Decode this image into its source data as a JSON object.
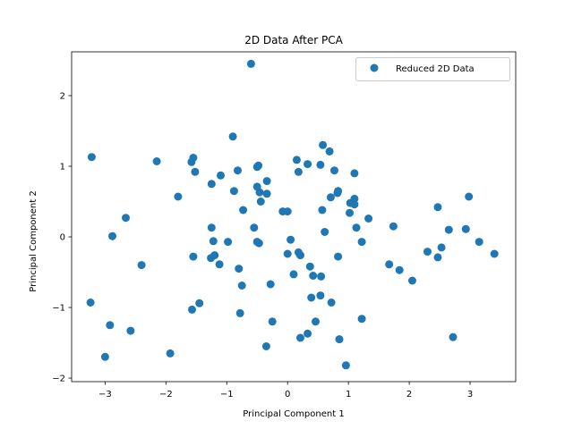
{
  "chart_data": {
    "type": "scatter",
    "title": "2D Data After PCA",
    "xlabel": "Principal Component 1",
    "ylabel": "Principal Component 2",
    "xlim": [
      -3.55,
      3.75
    ],
    "ylim": [
      -2.05,
      2.62
    ],
    "xticks": [
      -3,
      -2,
      -1,
      0,
      1,
      2,
      3
    ],
    "yticks": [
      -2,
      -1,
      0,
      1,
      2
    ],
    "grid": false,
    "legend": {
      "placement": "top-right"
    },
    "color": "#1f77b4",
    "series": [
      {
        "name": "Reduced 2D Data",
        "points": [
          [
            -0.6,
            2.45
          ],
          [
            -3.22,
            1.13
          ],
          [
            -2.15,
            1.07
          ],
          [
            -1.58,
            1.06
          ],
          [
            -1.55,
            1.12
          ],
          [
            -0.9,
            1.42
          ],
          [
            -0.82,
            0.94
          ],
          [
            -0.5,
            0.99
          ],
          [
            -0.48,
            1.01
          ],
          [
            -0.88,
            0.65
          ],
          [
            -0.5,
            0.71
          ],
          [
            -0.34,
            0.79
          ],
          [
            -0.46,
            0.63
          ],
          [
            -0.34,
            0.61
          ],
          [
            -0.44,
            0.5
          ],
          [
            -1.52,
            0.92
          ],
          [
            -1.1,
            0.87
          ],
          [
            -1.25,
            0.75
          ],
          [
            -1.8,
            0.57
          ],
          [
            -0.73,
            0.38
          ],
          [
            -0.08,
            0.36
          ],
          [
            0.0,
            0.36
          ],
          [
            -0.55,
            0.13
          ],
          [
            -1.25,
            0.13
          ],
          [
            -2.66,
            0.27
          ],
          [
            -2.88,
            0.01
          ],
          [
            -2.4,
            -0.4
          ],
          [
            -0.98,
            -0.07
          ],
          [
            -0.5,
            -0.07
          ],
          [
            -0.47,
            -0.09
          ],
          [
            -1.22,
            -0.06
          ],
          [
            -1.55,
            -0.28
          ],
          [
            -1.26,
            -0.3
          ],
          [
            -1.2,
            -0.26
          ],
          [
            -1.12,
            -0.39
          ],
          [
            -0.8,
            -0.45
          ],
          [
            -0.75,
            -0.69
          ],
          [
            -0.28,
            -0.67
          ],
          [
            0.0,
            -0.24
          ],
          [
            0.05,
            -0.04
          ],
          [
            0.18,
            -0.22
          ],
          [
            0.21,
            -0.26
          ],
          [
            0.1,
            -0.53
          ],
          [
            0.37,
            -0.42
          ],
          [
            0.42,
            -0.55
          ],
          [
            0.55,
            -0.56
          ],
          [
            0.39,
            -0.86
          ],
          [
            0.54,
            -0.83
          ],
          [
            0.72,
            -0.93
          ],
          [
            0.83,
            -0.28
          ],
          [
            -1.45,
            -0.94
          ],
          [
            -1.57,
            -1.03
          ],
          [
            -0.78,
            -1.08
          ],
          [
            -0.25,
            -1.2
          ],
          [
            -0.35,
            -1.55
          ],
          [
            0.46,
            -1.2
          ],
          [
            0.21,
            -1.43
          ],
          [
            0.33,
            -1.37
          ],
          [
            0.85,
            -1.45
          ],
          [
            1.22,
            -1.16
          ],
          [
            0.96,
            -1.82
          ],
          [
            -1.93,
            -1.65
          ],
          [
            -2.58,
            -1.33
          ],
          [
            -2.92,
            -1.25
          ],
          [
            -3.0,
            -1.7
          ],
          [
            -3.24,
            -0.93
          ],
          [
            0.15,
            1.09
          ],
          [
            0.18,
            0.92
          ],
          [
            0.33,
            1.03
          ],
          [
            0.54,
            1.02
          ],
          [
            0.58,
            1.3
          ],
          [
            0.69,
            1.21
          ],
          [
            0.77,
            0.94
          ],
          [
            1.1,
            0.9
          ],
          [
            0.82,
            0.62
          ],
          [
            0.83,
            0.65
          ],
          [
            0.71,
            0.56
          ],
          [
            1.03,
            0.48
          ],
          [
            1.1,
            0.54
          ],
          [
            1.1,
            0.46
          ],
          [
            1.33,
            0.26
          ],
          [
            1.02,
            0.34
          ],
          [
            0.57,
            0.38
          ],
          [
            0.61,
            0.07
          ],
          [
            1.13,
            0.13
          ],
          [
            1.22,
            -0.07
          ],
          [
            1.74,
            0.15
          ],
          [
            1.67,
            -0.39
          ],
          [
            1.84,
            -0.47
          ],
          [
            2.05,
            -0.62
          ],
          [
            2.3,
            -0.21
          ],
          [
            2.47,
            -0.29
          ],
          [
            2.53,
            -0.15
          ],
          [
            2.47,
            0.42
          ],
          [
            2.65,
            0.1
          ],
          [
            2.93,
            0.11
          ],
          [
            2.98,
            0.57
          ],
          [
            3.15,
            -0.07
          ],
          [
            3.4,
            -0.24
          ],
          [
            2.72,
            -1.42
          ]
        ]
      }
    ]
  }
}
